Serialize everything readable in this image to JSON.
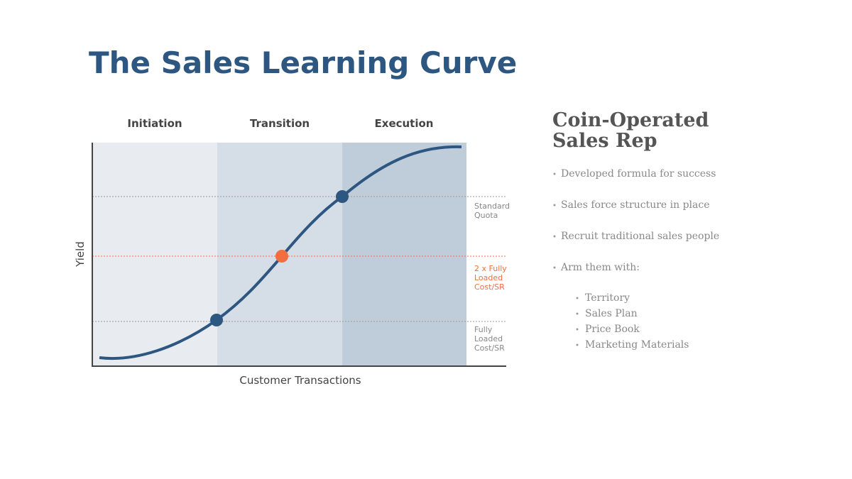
{
  "title": "The Sales Learning Curve",
  "diagram": {
    "phases": [
      "Initiation",
      "Transition",
      "Execution"
    ],
    "y_axis_label": "Yield",
    "x_axis_label": "Customer Transactions",
    "levels": [
      {
        "lines": [
          "Standard",
          "Quota"
        ]
      },
      {
        "lines": [
          "2 x Fully",
          "Loaded",
          "Cost/SR"
        ]
      },
      {
        "lines": [
          "Fully",
          "Loaded",
          "Cost/SR"
        ]
      }
    ]
  },
  "panel": {
    "heading": [
      "Coin-Operated",
      "Sales Rep"
    ],
    "bullets": [
      "Developed formula for success",
      "Sales force structure in place",
      "Recruit traditional sales people",
      "Arm them with:"
    ],
    "sub_bullets": [
      "Territory",
      "Sales Plan",
      "Price Book",
      "Marketing Materials"
    ]
  }
}
